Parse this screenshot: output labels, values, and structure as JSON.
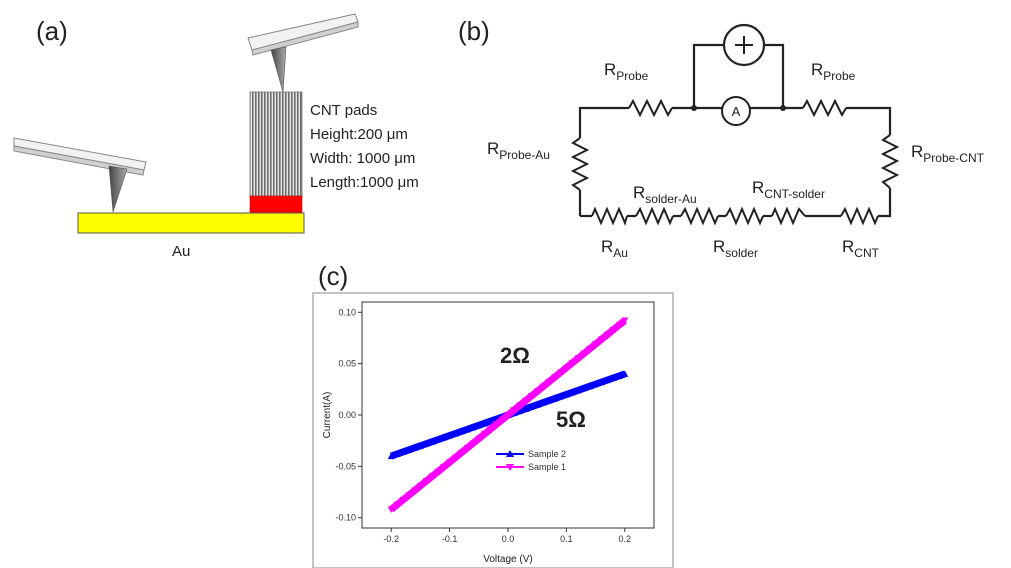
{
  "panel_a": {
    "label": "(a)",
    "info_title": "CNT pads",
    "info_height": "Height:200 μm",
    "info_width": "Width: 1000 μm",
    "info_length": "Length:1000 μm",
    "substrate_label": "Au",
    "colors": {
      "au": "#ffff00",
      "solder": "#ff0000",
      "cnt": "#9a9a9a",
      "probe": "#777777"
    }
  },
  "panel_b": {
    "label": "(b)",
    "ammeter": "A",
    "resistors": {
      "probe_left": {
        "main": "R",
        "sub": "Probe"
      },
      "probe_right": {
        "main": "R",
        "sub": "Probe"
      },
      "probe_au": {
        "main": "R",
        "sub": "Probe-Au"
      },
      "probe_cnt": {
        "main": "R",
        "sub": "Probe-CNT"
      },
      "solder_au": {
        "main": "R",
        "sub": "solder-Au"
      },
      "cnt_solder": {
        "main": "R",
        "sub": "CNT-solder"
      },
      "au": {
        "main": "R",
        "sub": "Au"
      },
      "solder": {
        "main": "R",
        "sub": "solder"
      },
      "cnt": {
        "main": "R",
        "sub": "CNT"
      }
    }
  },
  "panel_c": {
    "label": "(c)",
    "annotation_2": "2Ω",
    "annotation_5": "5Ω",
    "chart_data": {
      "type": "line",
      "xlabel": "Voltage (V)",
      "ylabel": "Current(A)",
      "xlim": [
        -0.25,
        0.25
      ],
      "ylim": [
        -0.11,
        0.11
      ],
      "xticks": [
        -0.2,
        -0.1,
        0.0,
        0.1,
        0.2
      ],
      "xtick_labels": [
        "-0.2",
        "-0.1",
        "0.0",
        "0.1",
        "0.2"
      ],
      "yticks": [
        -0.1,
        -0.05,
        0.0,
        0.05,
        0.1
      ],
      "ytick_labels": [
        "-0.10",
        "-0.05",
        "0.00",
        "0.05",
        "0.10"
      ],
      "legend_position": "lower-center",
      "series": [
        {
          "name": "Sample 2",
          "color": "#0000ff",
          "marker": "triangle-up",
          "x": [
            -0.2,
            0.2
          ],
          "y": [
            -0.04,
            0.04
          ]
        },
        {
          "name": "Sample 1",
          "color": "#ff00ff",
          "marker": "triangle-down",
          "x": [
            -0.2,
            0.2
          ],
          "y": [
            -0.092,
            0.092
          ]
        }
      ]
    }
  }
}
